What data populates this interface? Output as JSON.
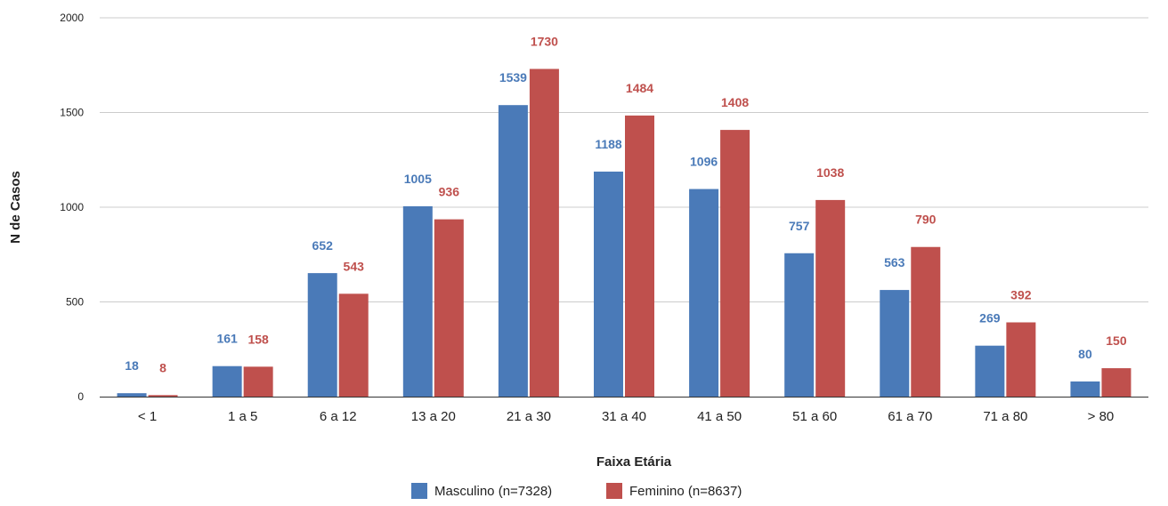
{
  "chart_data": {
    "type": "bar",
    "title": "",
    "xlabel": "Faixa Etária",
    "ylabel": "N de Casos",
    "ylim": [
      0,
      2000
    ],
    "yticks": [
      0,
      500,
      1000,
      1500,
      2000
    ],
    "grid": true,
    "legend_position": "bottom-center",
    "categories": [
      "< 1",
      "1 a 5",
      "6 a 12",
      "13 a 20",
      "21 a 30",
      "31 a 40",
      "41 a 50",
      "51 a 60",
      "61 a 70",
      "71 a 80",
      "> 80"
    ],
    "series": [
      {
        "name": "Masculino (n=7328)",
        "color": "#4a7ab8",
        "label_color": "#4a7ab8",
        "values": [
          18,
          161,
          652,
          1005,
          1539,
          1188,
          1096,
          757,
          563,
          269,
          80
        ]
      },
      {
        "name": "Feminino (n=8637)",
        "color": "#bf504d",
        "label_color": "#bf504d",
        "values": [
          8,
          158,
          543,
          936,
          1730,
          1484,
          1408,
          1038,
          790,
          392,
          150
        ]
      }
    ]
  }
}
